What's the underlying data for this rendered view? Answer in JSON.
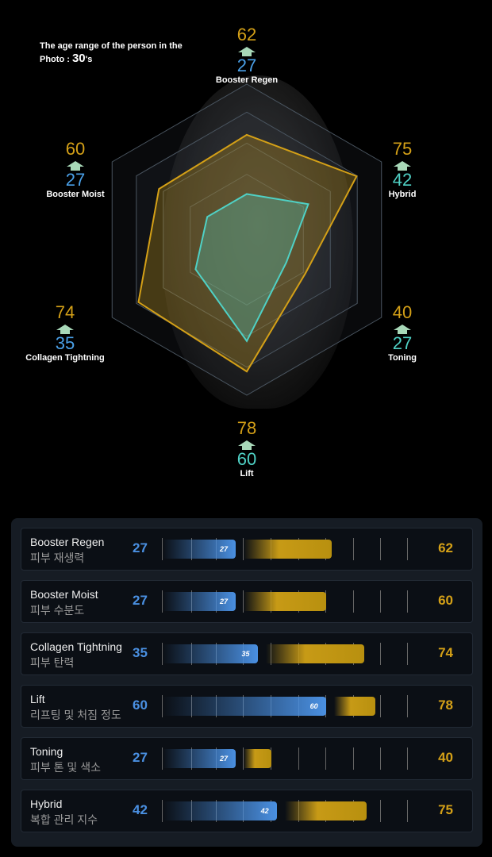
{
  "age": {
    "label": "The age range of the person in the",
    "label2": "Photo :",
    "value": "30",
    "suffix": "'s"
  },
  "scale_max": 90,
  "colors": {
    "current": "#4fd1c5",
    "target": "#d4a017",
    "blue": "#4a90e2"
  },
  "metrics": [
    {
      "name": "Booster Regen",
      "korean": "피부 재생력",
      "current": 27,
      "target": 62,
      "current_text": "27",
      "target_text": "62"
    },
    {
      "name": "Booster Moist",
      "korean": "피부 수분도",
      "current": 27,
      "target": 60,
      "current_text": "27",
      "target_text": "60"
    },
    {
      "name": "Collagen Tightning",
      "korean": "피부 탄력",
      "current": 35,
      "target": 74,
      "current_text": "35",
      "target_text": "74"
    },
    {
      "name": "Lift",
      "korean": "리프팅 및 처짐 정도",
      "current": 60,
      "target": 78,
      "current_text": "60",
      "target_text": "78"
    },
    {
      "name": "Toning",
      "korean": "피부 톤 및 색소",
      "current": 27,
      "target": 40,
      "current_text": "27",
      "target_text": "40"
    },
    {
      "name": "Hybrid",
      "korean": "복합 관리 지수",
      "current": 42,
      "target": 75,
      "current_text": "42",
      "target_text": "75"
    }
  ],
  "radar_order": [
    0,
    5,
    4,
    3,
    2,
    1
  ]
}
